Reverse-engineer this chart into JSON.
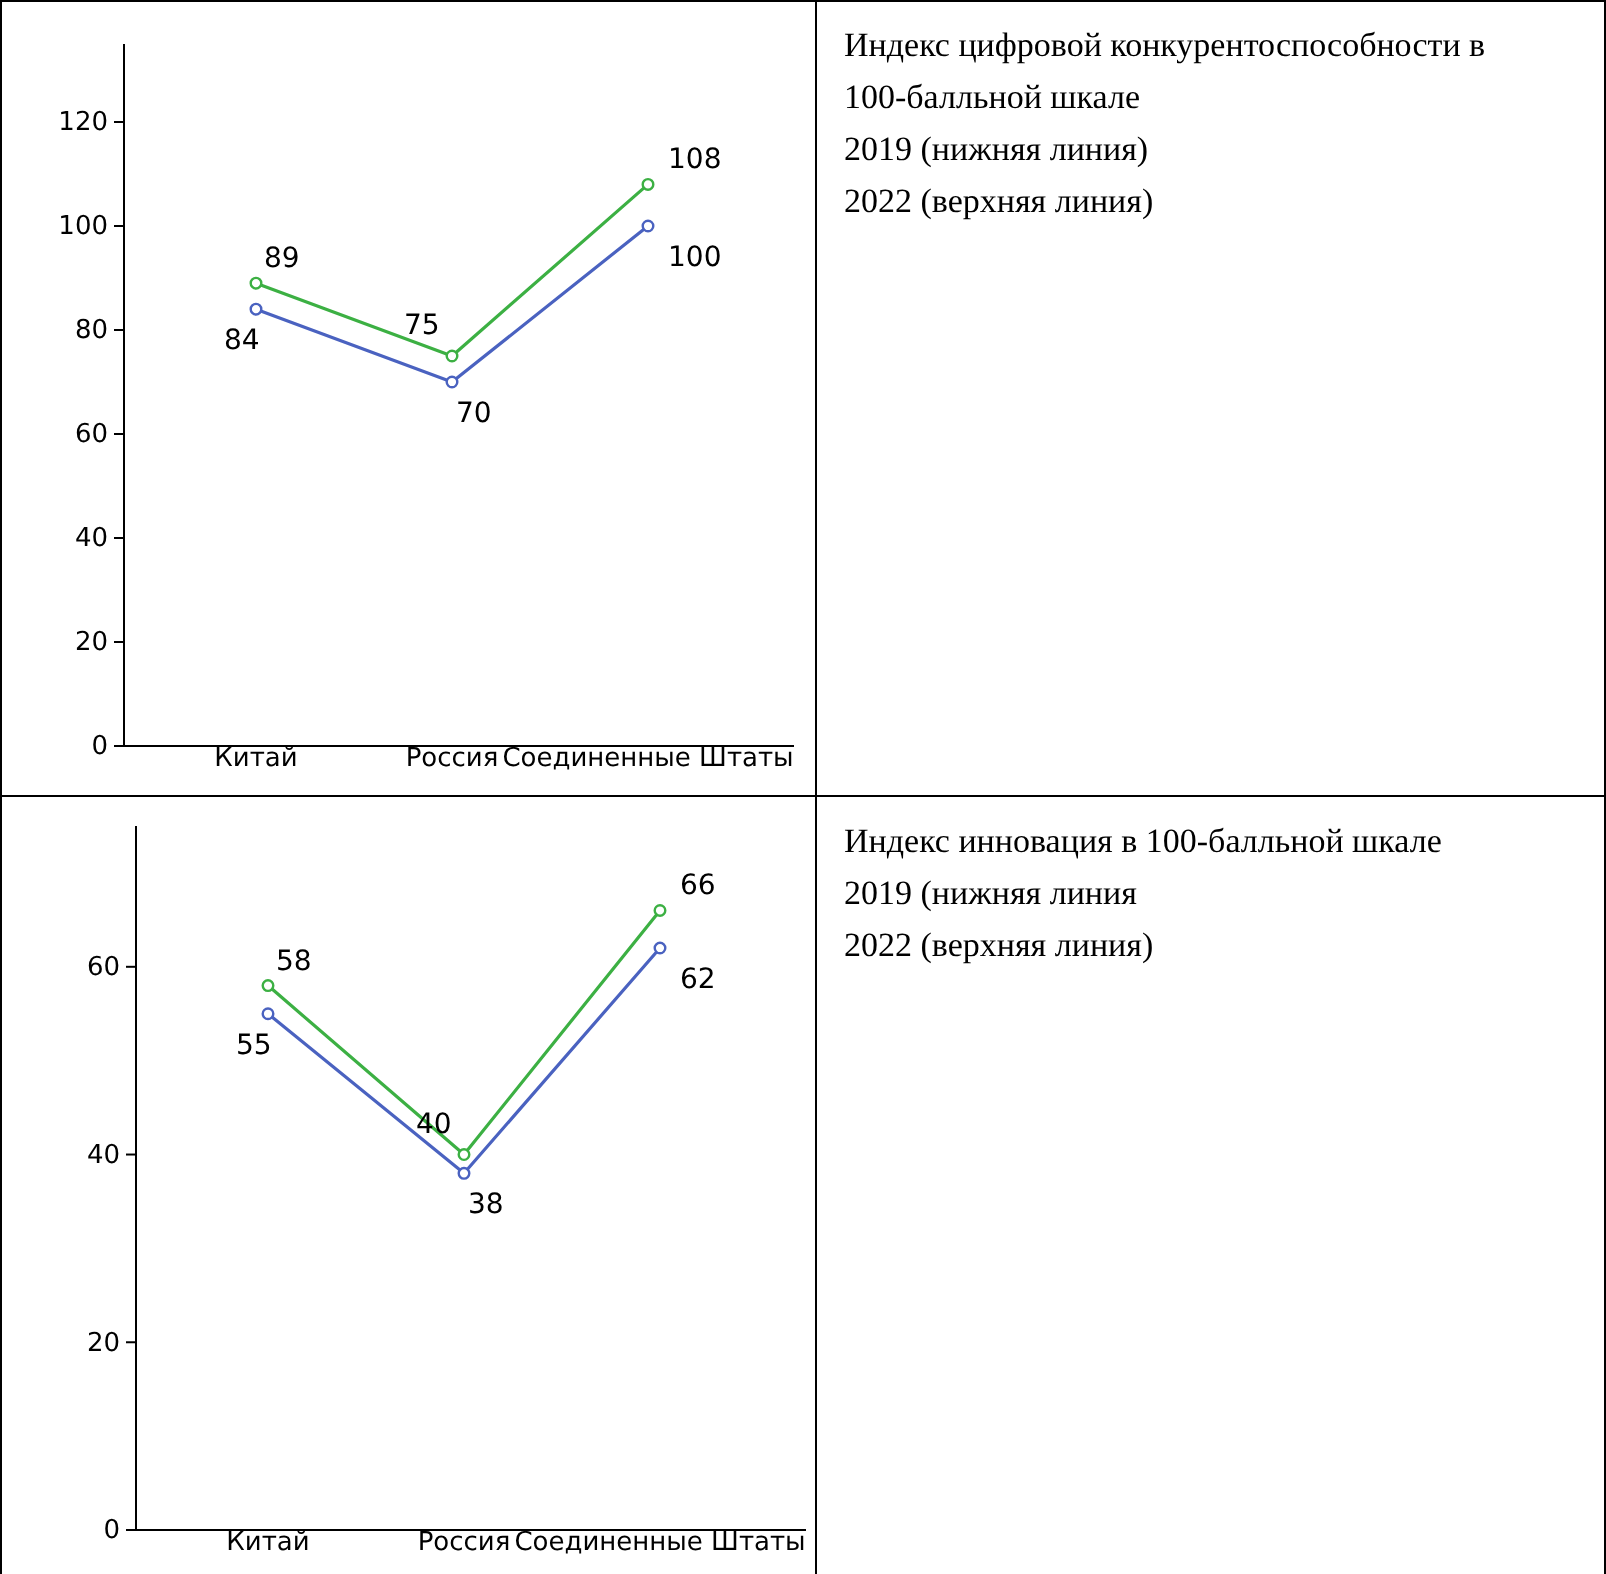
{
  "chart_data": [
    {
      "type": "line",
      "categories": [
        "Китай",
        "Россия",
        "Соединенные Штаты"
      ],
      "series": [
        {
          "color": "#4a62c0",
          "values": [
            84,
            70,
            100
          ]
        },
        {
          "color": "#3cb043",
          "values": [
            89,
            75,
            108
          ]
        }
      ],
      "ylim": [
        0,
        135
      ],
      "yticks": [
        0,
        20,
        40,
        60,
        80,
        100,
        120
      ],
      "grid": false,
      "marker": "circle",
      "line_style": "solid",
      "data_labels": true
    },
    {
      "type": "other",
      "title": "Индекс цифровой конкурентоспособности в 100-балльной шкале",
      "annotations": [
        "2019 (нижняя линия)",
        "2022 (верхняя линия)"
      ]
    },
    {
      "type": "line",
      "categories": [
        "Китай",
        "Россия",
        "Соединенные Штаты"
      ],
      "series": [
        {
          "color": "#4a62c0",
          "values": [
            55,
            38,
            62
          ]
        },
        {
          "color": "#3cb043",
          "values": [
            58,
            40,
            66
          ]
        }
      ],
      "ylim": [
        0,
        75
      ],
      "yticks": [
        0,
        20,
        40,
        60
      ],
      "grid": false,
      "marker": "circle",
      "line_style": "solid",
      "data_labels": true
    },
    {
      "type": "other",
      "title": "Индекс инновация в 100-балльной шкале",
      "annotations": [
        "2019 (нижняя линия",
        "2022 (верхняя линия)"
      ]
    }
  ]
}
